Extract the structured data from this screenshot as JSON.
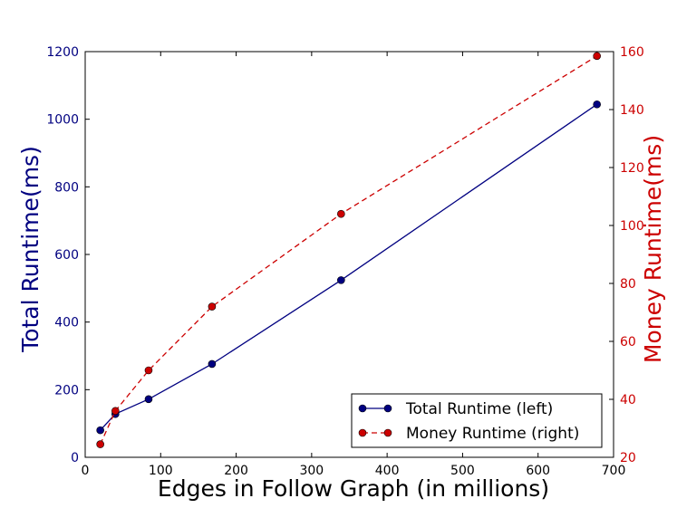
{
  "chart_data": {
    "type": "line",
    "title": "",
    "xlabel": "Edges in Follow Graph (in millions)",
    "ylabel_left": "Total Runtime(ms)",
    "ylabel_right": "Money Runtime(ms)",
    "xlim": [
      0,
      700
    ],
    "ylim_left": [
      0,
      1200
    ],
    "ylim_right": [
      20,
      160
    ],
    "x_ticks": [
      0,
      100,
      200,
      300,
      400,
      500,
      600,
      700
    ],
    "y_left_ticks": [
      0,
      200,
      400,
      600,
      800,
      1000,
      1200
    ],
    "y_right_ticks": [
      20,
      40,
      60,
      80,
      100,
      120,
      140,
      160
    ],
    "grid": false,
    "legend_position": "bottom-right",
    "series": [
      {
        "name": "Total Runtime (left)",
        "axis": "left",
        "color": "#000080",
        "line_style": "solid",
        "x": [
          20,
          40,
          84,
          168,
          339,
          678
        ],
        "y": [
          80,
          128,
          172,
          276,
          524,
          1044
        ]
      },
      {
        "name": "Money Runtime (right)",
        "axis": "right",
        "color": "#cc0000",
        "line_style": "dashed",
        "x": [
          20,
          40,
          84,
          168,
          339,
          678
        ],
        "y": [
          24.5,
          36,
          50,
          72,
          104,
          158.5
        ]
      }
    ]
  }
}
